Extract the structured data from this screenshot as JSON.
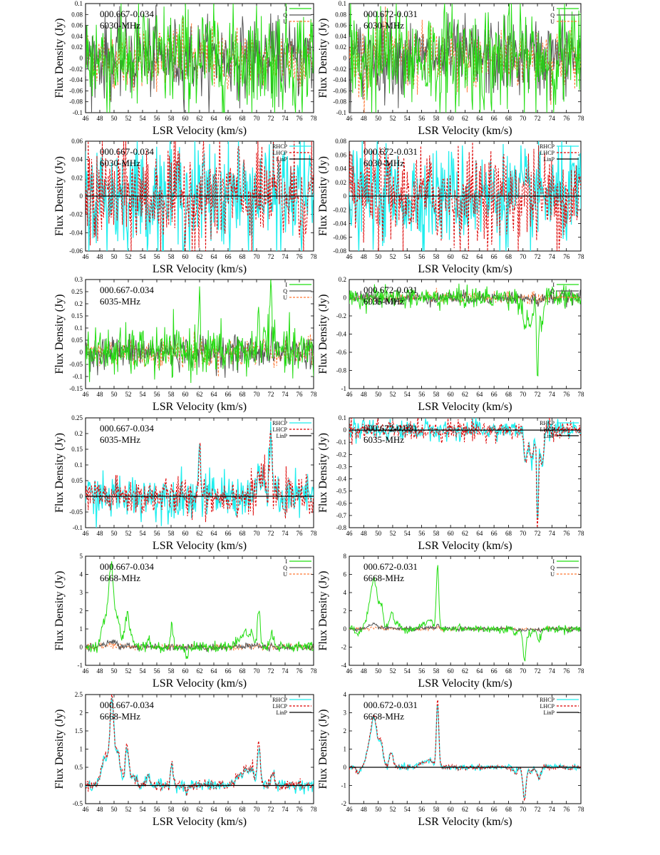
{
  "chart_data": [
    {
      "type": "line",
      "name_text": "000.667-0.034",
      "freq": "6030-MHz",
      "pol": "IQU",
      "xlim": [
        46,
        78
      ],
      "ylim": [
        -0.1,
        0.1
      ],
      "yticks": [
        -0.1,
        -0.08,
        -0.06,
        -0.04,
        -0.02,
        0,
        0.02,
        0.04,
        0.06,
        0.08,
        0.1
      ],
      "noise": {
        "I": 0.05,
        "Q": 0.035,
        "U": 0.03
      },
      "features": []
    },
    {
      "type": "line",
      "name_text": "000.672-0.031",
      "freq": "6030-MHz",
      "pol": "IQU",
      "xlim": [
        46,
        78
      ],
      "ylim": [
        -0.1,
        0.1
      ],
      "yticks": [
        -0.1,
        -0.08,
        -0.06,
        -0.04,
        -0.02,
        0,
        0.02,
        0.04,
        0.06,
        0.08,
        0.1
      ],
      "noise": {
        "I": 0.05,
        "Q": 0.035,
        "U": 0.03
      },
      "features": []
    },
    {
      "type": "line",
      "name_text": "000.667-0.034",
      "freq": "6030-MHz",
      "pol": "CP",
      "xlim": [
        46,
        78
      ],
      "ylim": [
        -0.06,
        0.06
      ],
      "yticks": [
        -0.06,
        -0.04,
        -0.02,
        0,
        0.02,
        0.04,
        0.06
      ],
      "noise": {
        "R": 0.03,
        "L": 0.03
      },
      "features": []
    },
    {
      "type": "line",
      "name_text": "000.672-0.031",
      "freq": "6030-MHz",
      "pol": "CP",
      "xlim": [
        46,
        78
      ],
      "ylim": [
        -0.08,
        0.08
      ],
      "yticks": [
        -0.08,
        -0.06,
        -0.04,
        -0.02,
        0,
        0.02,
        0.04,
        0.06,
        0.08
      ],
      "noise": {
        "R": 0.035,
        "L": 0.035
      },
      "features": []
    },
    {
      "type": "line",
      "name_text": "000.667-0.034",
      "freq": "6035-MHz",
      "pol": "IQU",
      "xlim": [
        46,
        78
      ],
      "ylim": [
        -0.15,
        0.3
      ],
      "yticks": [
        -0.15,
        -0.1,
        -0.05,
        0,
        0.05,
        0.1,
        0.15,
        0.2,
        0.25,
        0.3
      ],
      "noise": {
        "I": 0.05,
        "Q": 0.035,
        "U": 0.03
      },
      "features": [
        [
          62.0,
          0.22,
          0.18
        ],
        [
          70.3,
          0.12,
          0.25
        ],
        [
          71.0,
          0.1,
          0.2
        ],
        [
          72.0,
          0.26,
          0.25
        ]
      ]
    },
    {
      "type": "line",
      "name_text": "000.672-0.031",
      "freq": "6035-MHz",
      "pol": "IQU",
      "xlim": [
        46,
        78
      ],
      "ylim": [
        -1,
        0.2
      ],
      "yticks": [
        -1,
        -0.8,
        -0.6,
        -0.4,
        -0.2,
        0,
        0.2
      ],
      "noise": {
        "I": 0.06,
        "Q": 0.035,
        "U": 0.03
      },
      "features": [
        [
          70.2,
          -0.3,
          0.3
        ],
        [
          71.0,
          -0.35,
          0.3
        ],
        [
          72.0,
          -0.92,
          0.15
        ],
        [
          72.6,
          -0.3,
          0.3
        ]
      ]
    },
    {
      "type": "line",
      "name_text": "000.667-0.034",
      "freq": "6035-MHz",
      "pol": "CP",
      "xlim": [
        46,
        78
      ],
      "ylim": [
        -0.1,
        0.25
      ],
      "yticks": [
        -0.1,
        -0.05,
        0,
        0.05,
        0.1,
        0.15,
        0.2,
        0.25
      ],
      "noise": {
        "R": 0.035,
        "L": 0.03
      },
      "features": [
        [
          62.0,
          0.17,
          0.17
        ],
        [
          70.3,
          0.08,
          0.25
        ],
        [
          71.0,
          0.07,
          0.2
        ],
        [
          72.0,
          0.2,
          0.2
        ]
      ]
    },
    {
      "type": "line",
      "name_text": "000.672-0.031",
      "freq": "6035-MHz",
      "pol": "CP",
      "xlim": [
        46,
        78
      ],
      "ylim": [
        -0.8,
        0.1
      ],
      "yticks": [
        -0.8,
        -0.7,
        -0.6,
        -0.5,
        -0.4,
        -0.3,
        -0.2,
        -0.1,
        0,
        0.1
      ],
      "noise": {
        "R": 0.04,
        "L": 0.04
      },
      "features": [
        [
          70.4,
          -0.25,
          0.3
        ],
        [
          71.2,
          -0.25,
          0.3
        ],
        [
          72.0,
          -0.75,
          0.15
        ],
        [
          72.6,
          -0.3,
          0.3
        ]
      ]
    },
    {
      "type": "line",
      "name_text": "000.667-0.034",
      "freq": "6668-MHz",
      "pol": "IQU",
      "xlim": [
        46,
        78
      ],
      "ylim": [
        -1,
        5
      ],
      "yticks": [
        -1,
        0,
        1,
        2,
        3,
        4,
        5
      ],
      "noise": {
        "I": 0.15,
        "Q": 0.1,
        "U": 0.08
      },
      "features": [
        [
          48.8,
          1.5,
          0.6
        ],
        [
          49.6,
          4.0,
          0.35
        ],
        [
          50.4,
          1.8,
          0.45
        ],
        [
          51.8,
          1.7,
          0.35
        ],
        [
          52.5,
          0.5,
          0.5
        ],
        [
          54.8,
          0.4,
          0.3
        ],
        [
          58.1,
          1.2,
          0.2
        ],
        [
          60.2,
          -0.5,
          0.2
        ],
        [
          67.5,
          0.4,
          0.6
        ],
        [
          68.5,
          0.8,
          0.4
        ],
        [
          69.3,
          0.9,
          0.3
        ],
        [
          70.3,
          2.1,
          0.25
        ],
        [
          72.2,
          0.8,
          0.3
        ]
      ]
    },
    {
      "type": "line",
      "name_text": "000.672-0.031",
      "freq": "6668-MHz",
      "pol": "IQU",
      "xlim": [
        46,
        78
      ],
      "ylim": [
        -4,
        8
      ],
      "yticks": [
        -4,
        -2,
        0,
        2,
        4,
        6,
        8
      ],
      "noise": {
        "I": 0.2,
        "Q": 0.12,
        "U": 0.1
      },
      "features": [
        [
          47.2,
          -0.6,
          0.3
        ],
        [
          48.8,
          2.2,
          0.5
        ],
        [
          49.5,
          4.8,
          0.45
        ],
        [
          50.4,
          2.5,
          0.35
        ],
        [
          51.8,
          1.6,
          0.3
        ],
        [
          52.5,
          0.6,
          0.5
        ],
        [
          56.3,
          0.5,
          0.8
        ],
        [
          57.2,
          0.7,
          0.4
        ],
        [
          58.2,
          7.0,
          0.2
        ],
        [
          61.2,
          0.5,
          0.2
        ],
        [
          69.0,
          -0.6,
          0.3
        ],
        [
          70.2,
          -3.5,
          0.25
        ],
        [
          71.0,
          -0.6,
          0.3
        ],
        [
          72.2,
          -1.3,
          0.3
        ]
      ]
    },
    {
      "type": "line",
      "name_text": "000.667-0.034",
      "freq": "6668-MHz",
      "pol": "CP",
      "xlim": [
        46,
        78
      ],
      "ylim": [
        -0.5,
        2.5
      ],
      "yticks": [
        -0.5,
        0,
        0.5,
        1,
        1.5,
        2,
        2.5
      ],
      "noise": {
        "R": 0.08,
        "L": 0.07
      },
      "features": [
        [
          48.8,
          0.8,
          0.6
        ],
        [
          49.7,
          2.2,
          0.3
        ],
        [
          50.5,
          0.9,
          0.45
        ],
        [
          51.8,
          1.0,
          0.3
        ],
        [
          52.6,
          0.25,
          0.5
        ],
        [
          54.8,
          0.25,
          0.3
        ],
        [
          58.1,
          0.65,
          0.2
        ],
        [
          60.2,
          -0.2,
          0.2
        ],
        [
          67.5,
          0.25,
          0.6
        ],
        [
          68.5,
          0.4,
          0.4
        ],
        [
          69.3,
          0.5,
          0.3
        ],
        [
          70.3,
          1.1,
          0.25
        ],
        [
          72.2,
          0.35,
          0.3
        ]
      ]
    },
    {
      "type": "line",
      "name_text": "000.672-0.031",
      "freq": "6668-MHz",
      "pol": "CP",
      "xlim": [
        46,
        78
      ],
      "ylim": [
        -2,
        4
      ],
      "yticks": [
        -2,
        -1,
        0,
        1,
        2,
        3,
        4
      ],
      "noise": {
        "R": 0.08,
        "L": 0.07
      },
      "features": [
        [
          47.2,
          -0.3,
          0.3
        ],
        [
          48.8,
          1.1,
          0.5
        ],
        [
          49.5,
          2.4,
          0.45
        ],
        [
          50.4,
          1.2,
          0.35
        ],
        [
          51.8,
          0.8,
          0.3
        ],
        [
          56.3,
          0.25,
          0.8
        ],
        [
          57.2,
          0.3,
          0.4
        ],
        [
          58.2,
          3.5,
          0.2
        ],
        [
          69.0,
          -0.3,
          0.3
        ],
        [
          70.2,
          -1.7,
          0.25
        ],
        [
          71.0,
          -0.3,
          0.3
        ],
        [
          72.2,
          -0.6,
          0.3
        ]
      ]
    }
  ],
  "common": {
    "xlabel": "LSR Velocity (km/s)",
    "ylabel": "Flux Density (Jy)",
    "xticks": [
      46,
      48,
      50,
      52,
      54,
      56,
      58,
      60,
      62,
      64,
      66,
      68,
      70,
      72,
      74,
      76,
      78
    ]
  },
  "legends": {
    "IQU": {
      "labels": [
        "I",
        "Q",
        "U"
      ],
      "colors": [
        "#22dd11",
        "#555555",
        "#ff7733"
      ]
    },
    "CP": {
      "labels": [
        "RHCP",
        "LHCP",
        "LinP"
      ],
      "colors": [
        "#22eeee",
        "#dd0000",
        "#000000"
      ]
    }
  }
}
